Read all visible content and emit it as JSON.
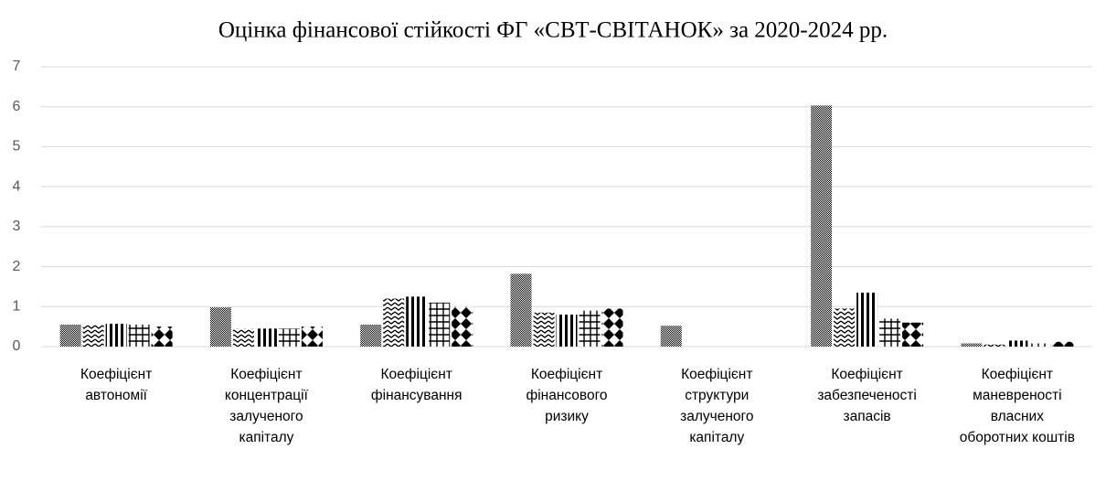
{
  "chart_data": {
    "type": "bar",
    "title": "Оцінка фінансової стійкості ФГ «СВТ-СВІТАНОК» за 2020-2024 рр.",
    "categories": [
      "Коефіцієнт автономії",
      "Коефіцієнт концентрації залученого капіталу",
      "Коефіцієнт фінансування",
      "Коефіцієнт фінансового ризику",
      "Коефіцієнт структури залученого капіталу",
      "Коефіцієнт забезпеченості запасів",
      "Коефіцієнт маневреності власних оборотних коштів"
    ],
    "series": [
      {
        "color": "#000000",
        "values": [
          0.55,
          0.98,
          0.55,
          1.82,
          0.52,
          6.03,
          0.08
        ]
      },
      {
        "color": "#000000",
        "values": [
          0.55,
          0.45,
          1.2,
          0.85,
          0,
          0.95,
          0.05
        ]
      },
      {
        "color": "#000000",
        "values": [
          0.57,
          0.45,
          1.25,
          0.8,
          0,
          1.35,
          0.15
        ]
      },
      {
        "color": "#000000",
        "values": [
          0.55,
          0.45,
          1.1,
          0.9,
          0,
          0.7,
          0.08
        ]
      },
      {
        "color": "#000000",
        "values": [
          0.5,
          0.5,
          1.0,
          0.95,
          0,
          0.6,
          0.12
        ]
      }
    ],
    "ylim": [
      0,
      7
    ],
    "yticks": [
      0,
      1,
      2,
      3,
      4,
      5,
      6,
      7
    ],
    "grid": true
  }
}
